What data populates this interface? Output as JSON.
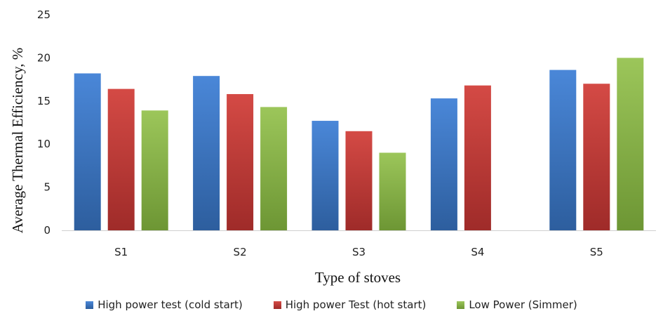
{
  "chart_data": {
    "type": "bar",
    "title": "",
    "xlabel": "Type of stoves",
    "ylabel": "Average Thermal Efficiency, %",
    "categories": [
      "S1",
      "S2",
      "S3",
      "S4",
      "S5"
    ],
    "ylim": [
      0,
      25
    ],
    "yticks": [
      0,
      5,
      10,
      15,
      20,
      25
    ],
    "grid": false,
    "legend_position": "bottom",
    "series": [
      {
        "name": "High power test (cold start)",
        "color_top": "#4a87d8",
        "color_bottom": "#2d5e9e",
        "values": [
          18.2,
          17.9,
          12.7,
          15.3,
          18.6
        ]
      },
      {
        "name": "High power Test (hot start)",
        "color_top": "#d44a45",
        "color_bottom": "#9f2b29",
        "values": [
          16.4,
          15.8,
          11.5,
          16.8,
          17.0
        ]
      },
      {
        "name": "Low Power (Simmer)",
        "color_top": "#9cc65a",
        "color_bottom": "#6d9634",
        "values": [
          13.9,
          14.3,
          9.0,
          null,
          20.0
        ]
      }
    ]
  }
}
